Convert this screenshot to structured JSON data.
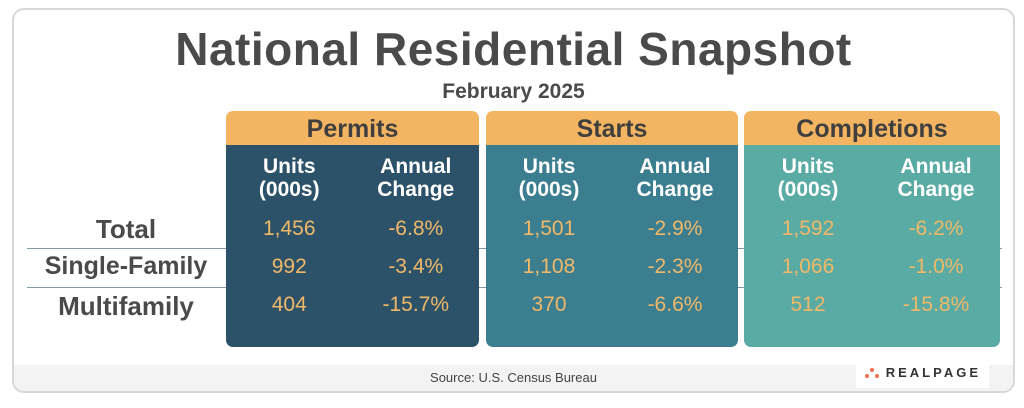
{
  "title": "National Residential Snapshot",
  "subtitle": "February 2025",
  "row_labels": [
    "Total",
    "Single-Family",
    "Multifamily"
  ],
  "col_headers": {
    "units": "Units\n(000s)",
    "change": "Annual\nChange"
  },
  "groups": [
    {
      "name": "Permits",
      "color": "#2b5269",
      "units": [
        "1,456",
        "992",
        "404"
      ],
      "change": [
        "-6.8%",
        "-3.4%",
        "-15.7%"
      ]
    },
    {
      "name": "Starts",
      "color": "#3b7e90",
      "units": [
        "1,501",
        "1,108",
        "370"
      ],
      "change": [
        "-2.9%",
        "-2.3%",
        "-6.6%"
      ]
    },
    {
      "name": "Completions",
      "color": "#5aaba4",
      "units": [
        "1,592",
        "1,066",
        "512"
      ],
      "change": [
        "-6.2%",
        "-1.0%",
        "-15.8%"
      ]
    }
  ],
  "footer": {
    "source": "Source: U.S. Census Bureau",
    "logo": "REALPAGE"
  },
  "colors": {
    "header": "#f3b562",
    "value": "#f1b868"
  }
}
